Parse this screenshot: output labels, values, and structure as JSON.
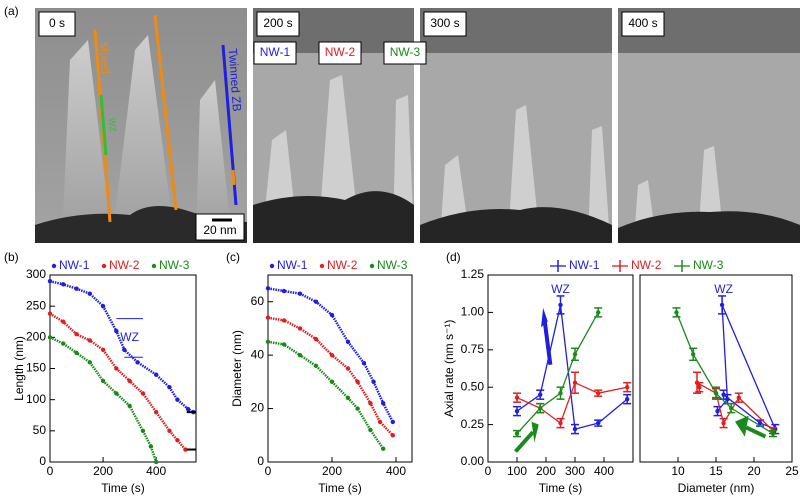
{
  "figure": {
    "panel_labels": [
      "(a)",
      "(b)",
      "(c)",
      "(d)"
    ],
    "images": [
      {
        "label": "0 s"
      },
      {
        "label": "200 s"
      },
      {
        "label": "300 s"
      },
      {
        "label": "400 s"
      }
    ],
    "annotations": {
      "mixed": "Mixed",
      "twinned": "Twinned ZB",
      "wz": "WZ",
      "scale_bar": "20 nm",
      "nanowires": [
        "NW-1",
        "NW-2",
        "NW-3"
      ]
    }
  },
  "chart_data": [
    {
      "type": "scatter",
      "xlabel": "Time (s)",
      "ylabel": "Length (nm)",
      "xlim": [
        0,
        550
      ],
      "xticks": [
        0,
        200,
        400
      ],
      "ylim": [
        0,
        300
      ],
      "yticks": [
        0,
        50,
        100,
        150,
        200,
        250,
        300
      ],
      "legend": true,
      "annotations": [
        "WZ"
      ],
      "series": [
        {
          "name": "NW-1",
          "color": "#1f1fe0",
          "x": [
            0,
            50,
            100,
            150,
            200,
            250,
            280,
            330,
            400,
            450,
            480,
            520,
            540
          ],
          "values": [
            290,
            285,
            278,
            270,
            250,
            210,
            180,
            160,
            140,
            120,
            100,
            85,
            80
          ]
        },
        {
          "name": "NW-2",
          "color": "#e02020",
          "x": [
            0,
            50,
            100,
            150,
            200,
            250,
            300,
            350,
            400,
            450,
            480,
            510
          ],
          "values": [
            238,
            225,
            205,
            195,
            180,
            150,
            130,
            110,
            80,
            50,
            35,
            20
          ]
        },
        {
          "name": "NW-3",
          "color": "#1a8a1a",
          "x": [
            0,
            50,
            100,
            150,
            200,
            250,
            300,
            350,
            380,
            400
          ],
          "values": [
            200,
            190,
            175,
            160,
            130,
            110,
            90,
            50,
            25,
            0
          ]
        }
      ]
    },
    {
      "type": "scatter",
      "xlabel": "Time (s)",
      "ylabel": "Diameter (nm)",
      "xlim": [
        0,
        450
      ],
      "xticks": [
        0,
        200,
        400
      ],
      "ylim": [
        0,
        70
      ],
      "yticks": [
        0,
        20,
        40,
        60
      ],
      "legend": true,
      "series": [
        {
          "name": "NW-1",
          "color": "#1f1fe0",
          "x": [
            0,
            50,
            100,
            150,
            200,
            250,
            300,
            330,
            360,
            390
          ],
          "values": [
            65,
            64,
            63,
            60,
            55,
            45,
            37,
            30,
            22,
            15
          ]
        },
        {
          "name": "NW-2",
          "color": "#e02020",
          "x": [
            0,
            50,
            100,
            150,
            200,
            250,
            280,
            320,
            350,
            390
          ],
          "values": [
            54,
            53,
            50,
            46,
            40,
            35,
            30,
            22,
            15,
            10
          ]
        },
        {
          "name": "NW-3",
          "color": "#1a8a1a",
          "x": [
            0,
            50,
            100,
            150,
            200,
            250,
            280,
            320,
            360
          ],
          "values": [
            45,
            44,
            40,
            36,
            30,
            24,
            20,
            12,
            5
          ]
        }
      ]
    },
    {
      "type": "line",
      "xlabel": "Time (s)",
      "ylabel": "Axial rate (nm s⁻¹)",
      "xlim": [
        0,
        500
      ],
      "xticks": [
        0,
        100,
        200,
        300,
        400
      ],
      "ylim": [
        0,
        1.25
      ],
      "yticks": [
        {
          "value": 0,
          "label": "0.00"
        },
        {
          "value": 0.25,
          "label": "0.25"
        },
        {
          "value": 0.5,
          "label": "0.50"
        },
        {
          "value": 0.75,
          "label": "0.75"
        },
        {
          "value": 1,
          "label": "1.00"
        },
        {
          "value": 1.25,
          "label": "1.25"
        }
      ],
      "legend": true,
      "annotations": [
        "WZ"
      ],
      "series": [
        {
          "name": "NW-1",
          "color": "#1f1fe0",
          "x": [
            100,
            180,
            250,
            300,
            380,
            480
          ],
          "values": [
            0.34,
            0.45,
            1.05,
            0.22,
            0.26,
            0.42
          ],
          "errors": [
            0.03,
            0.03,
            0.06,
            0.03,
            0.02,
            0.03
          ]
        },
        {
          "name": "NW-2",
          "color": "#e02020",
          "x": [
            100,
            180,
            250,
            300,
            380,
            480
          ],
          "values": [
            0.43,
            0.36,
            0.26,
            0.53,
            0.46,
            0.5
          ],
          "errors": [
            0.03,
            0.03,
            0.03,
            0.07,
            0.02,
            0.03
          ]
        },
        {
          "name": "NW-3",
          "color": "#1a8a1a",
          "x": [
            100,
            180,
            250,
            300,
            380
          ],
          "values": [
            0.19,
            0.36,
            0.46,
            0.72,
            1.0
          ],
          "errors": [
            0.02,
            0.03,
            0.04,
            0.04,
            0.03
          ]
        }
      ]
    },
    {
      "type": "line",
      "xlabel": "Diameter (nm)",
      "xlim": [
        5,
        25
      ],
      "xticks": [
        10,
        15,
        20,
        25
      ],
      "ylim": [
        0,
        1.25
      ],
      "annotations": [
        "WZ"
      ],
      "series": [
        {
          "color": "#1f1fe0",
          "x": [
            15.2,
            16.5,
            15.8,
            22.8,
            20.8,
            16.0
          ],
          "values": [
            0.34,
            0.42,
            1.05,
            0.22,
            0.26,
            0.45
          ],
          "errors": [
            0.03,
            0.03,
            0.06,
            0.03,
            0.02,
            0.03
          ]
        },
        {
          "color": "#e02020",
          "x": [
            12.8,
            12.5,
            15.0,
            16.0,
            18.0,
            22.5
          ],
          "values": [
            0.5,
            0.53,
            0.46,
            0.26,
            0.43,
            0.21
          ],
          "errors": [
            0.03,
            0.07,
            0.03,
            0.03,
            0.03,
            0.02
          ]
        },
        {
          "color": "#1a8a1a",
          "x": [
            9.8,
            12.0,
            15.0,
            17.0,
            22.5
          ],
          "values": [
            1.0,
            0.72,
            0.46,
            0.36,
            0.19
          ],
          "errors": [
            0.03,
            0.04,
            0.04,
            0.03,
            0.02
          ]
        }
      ]
    }
  ]
}
